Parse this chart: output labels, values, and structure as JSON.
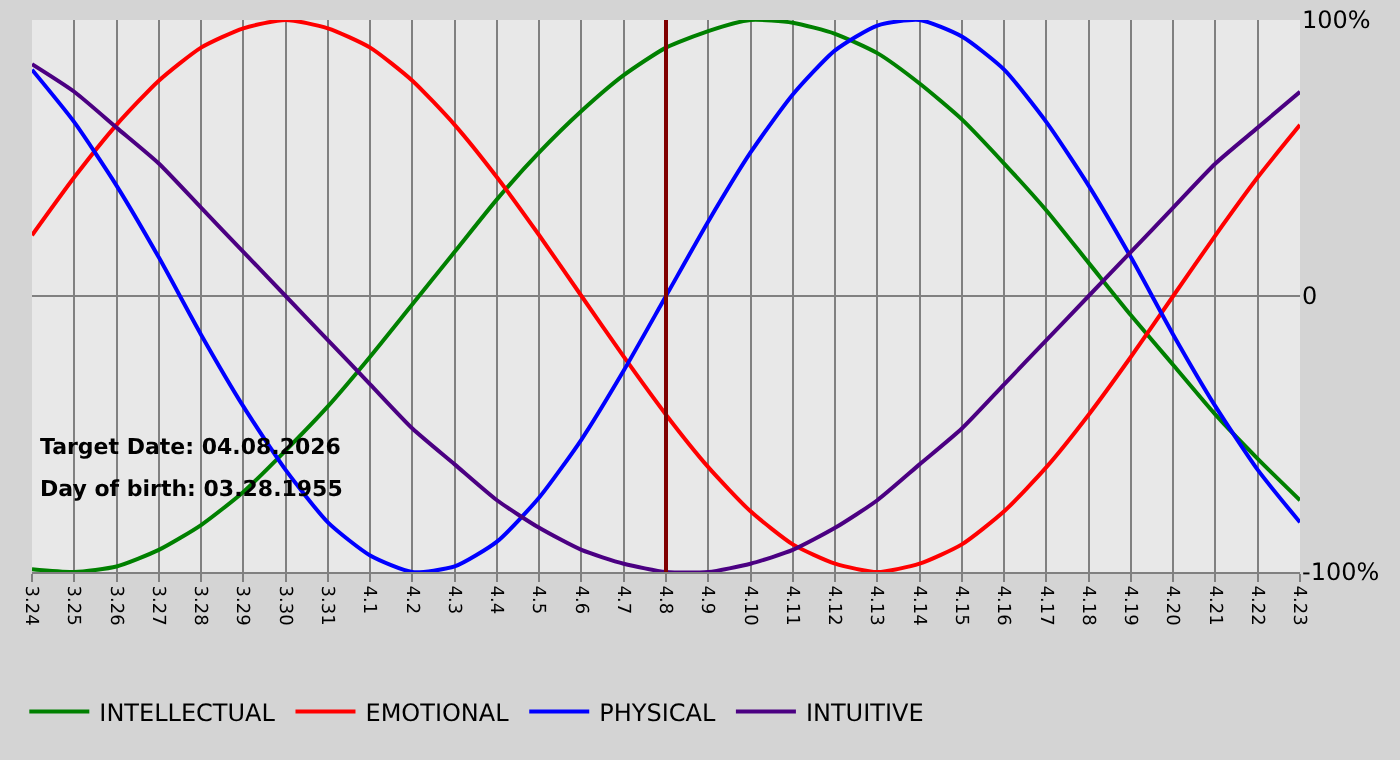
{
  "chart_data": {
    "type": "line",
    "categories": [
      "3.24",
      "3.25",
      "3.26",
      "3.27",
      "3.28",
      "3.29",
      "3.30",
      "3.31",
      "4.1",
      "4.2",
      "4.3",
      "4.4",
      "4.5",
      "4.6",
      "4.7",
      "4.8",
      "4.9",
      "4.10",
      "4.11",
      "4.12",
      "4.13",
      "4.14",
      "4.15",
      "4.16",
      "4.17",
      "4.18",
      "4.19",
      "4.20",
      "4.21",
      "4.22",
      "4.23"
    ],
    "series": [
      {
        "name": "INTELLECTUAL",
        "color": "#008000",
        "values": [
          -99,
          -100,
          -98,
          -92,
          -83,
          -71,
          -56,
          -40,
          -22,
          -3,
          16,
          35,
          52,
          67,
          80,
          90,
          96,
          100,
          99,
          95,
          88,
          77,
          64,
          48,
          31,
          12,
          -7,
          -25,
          -43,
          -59,
          -74
        ]
      },
      {
        "name": "EMOTIONAL",
        "color": "#ff0000",
        "values": [
          22,
          43,
          62,
          78,
          90,
          97,
          100,
          97,
          90,
          78,
          62,
          43,
          22,
          0,
          -22,
          -43,
          -62,
          -78,
          -90,
          -97,
          -100,
          -97,
          -90,
          -78,
          -62,
          -43,
          -22,
          0,
          22,
          43,
          62
        ]
      },
      {
        "name": "PHYSICAL",
        "color": "#0000ff",
        "values": [
          82,
          63,
          40,
          14,
          -14,
          -40,
          -63,
          -82,
          -94,
          -100,
          -98,
          -89,
          -73,
          -52,
          -27,
          0,
          27,
          52,
          73,
          89,
          98,
          100,
          94,
          82,
          63,
          40,
          14,
          -14,
          -40,
          -63,
          -82
        ]
      },
      {
        "name": "INTUITIVE",
        "color": "#4b0082",
        "values": [
          84,
          74,
          61,
          48,
          32,
          16,
          0,
          -16,
          -32,
          -48,
          -61,
          -74,
          -84,
          -92,
          -97,
          -100,
          -100,
          -97,
          -92,
          -84,
          -74,
          -61,
          -48,
          -32,
          -16,
          0,
          16,
          32,
          48,
          61,
          74
        ]
      }
    ],
    "ylim": [
      -100,
      100
    ],
    "yticks": [
      {
        "value": 100,
        "label": "100%"
      },
      0,
      {
        "value": -100,
        "label": "-100%"
      }
    ],
    "ref_lines": [
      {
        "axis": "x",
        "value": "4.8",
        "label": null,
        "color": "#800000"
      }
    ],
    "annotations": [
      "Target Date: 04.08.2026",
      "Day of birth: 03.28.1955"
    ],
    "grid": true,
    "legend": "bottom left",
    "marker": "none",
    "line_style": "solid"
  }
}
